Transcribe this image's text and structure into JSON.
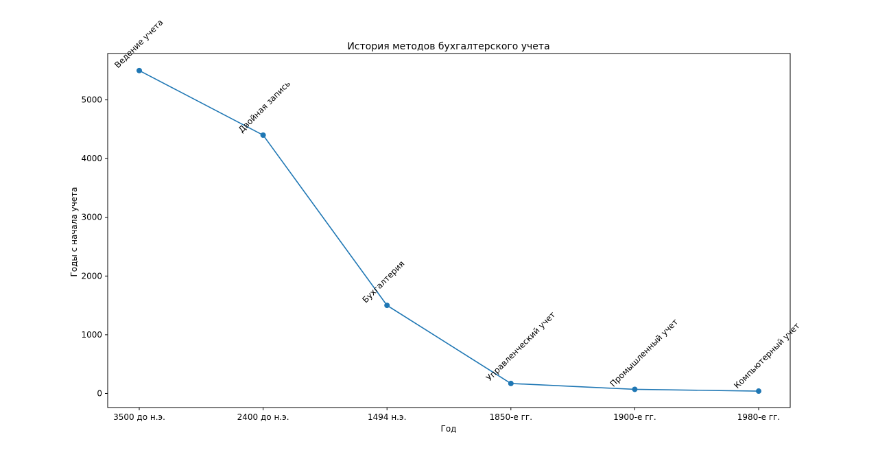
{
  "chart_data": {
    "type": "line",
    "title": "История методов бухгалтерского учета",
    "xlabel": "Год",
    "ylabel": "Годы с начала учета",
    "categories": [
      "3500 до н.э.",
      "2400 до н.э.",
      "1494 н.э.",
      "1850-е гг.",
      "1900-е гг.",
      "1980-е гг."
    ],
    "series": [
      {
        "values": [
          5500,
          4400,
          1500,
          170,
          70,
          40
        ],
        "point_labels": [
          "Ведение учета",
          "Двойная запись",
          "Бухгалтерия",
          "Управленческий учет",
          "Промышленный учет",
          "Компьютерный учет"
        ],
        "color": "#1f77b4"
      }
    ],
    "yticks": [
      0,
      1000,
      2000,
      3000,
      4000,
      5000
    ],
    "ylim": [
      -240,
      5790
    ],
    "grid": false,
    "legend": "none"
  }
}
